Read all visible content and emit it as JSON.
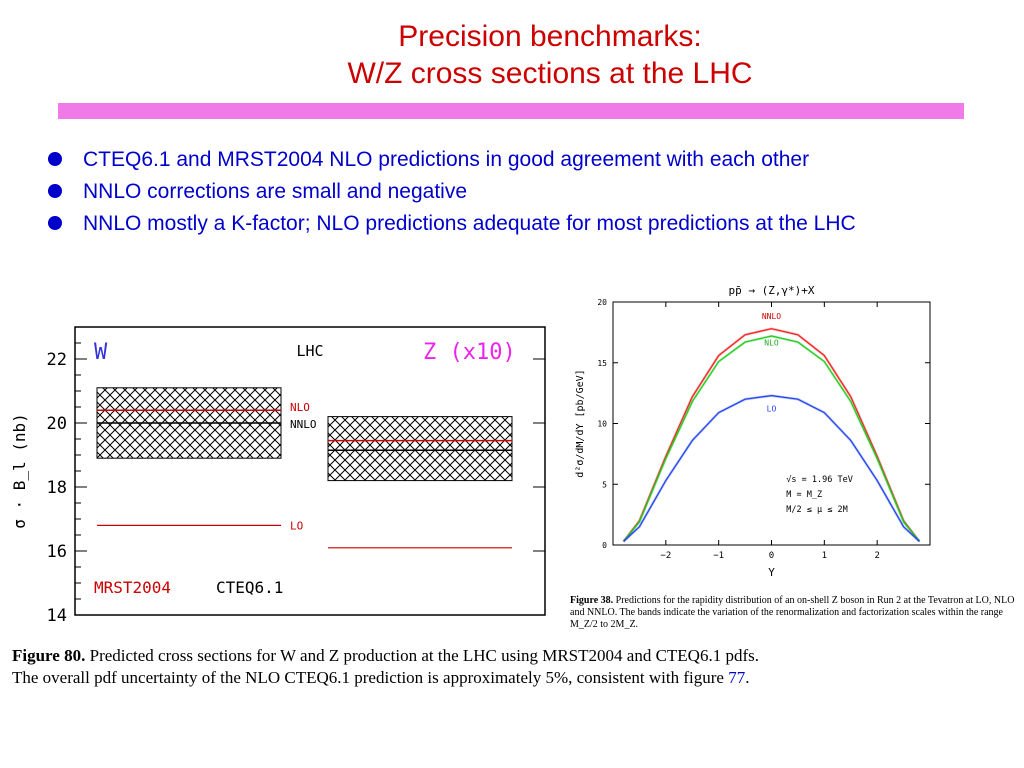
{
  "slide": {
    "title_line1": "Precision benchmarks:",
    "title_line2": "W/Z cross sections at the LHC",
    "bullets": [
      {
        "text": "CTEQ6.1 and MRST2004 NLO predictions in good agreement with each other"
      },
      {
        "text": "NNLO corrections are small and negative"
      },
      {
        "text": "NNLO mostly a K-factor; NLO predictions adequate for most predictions at the LHC"
      }
    ],
    "colors": {
      "title": "#cc0000",
      "bullets": "#0000cc",
      "rule": "#f07ae8"
    }
  },
  "figure80": {
    "caption_label": "Figure 80.",
    "caption_text": "Predicted cross sections for W and Z production at the LHC using MRST2004 and CTEQ6.1 pdfs. The overall pdf uncertainty of the NLO CTEQ6.1 prediction is approximately 5%, consistent with figure",
    "caption_ref": "77",
    "caption_end": "."
  },
  "figure38": {
    "caption_label": "Figure 38.",
    "caption_text": "Predictions for the rapidity distribution of an on-shell Z boson in Run 2 at the Tevatron at LO, NLO and NNLO. The bands indicate the variation of the renormalization and factorization scales within the range M_Z/2 to 2M_Z."
  },
  "chart_data": [
    {
      "type": "bar",
      "ylabel": "σ · B_l (nb)",
      "ylim": [
        14,
        23
      ],
      "yticks": [
        14,
        16,
        18,
        20,
        22
      ],
      "header_left": "W",
      "header_center": "LHC",
      "header_right": "Z (x10)",
      "footer_left": "MRST2004",
      "footer_right": "CTEQ6.1",
      "colors": {
        "W": "#3333dd",
        "Z": "#ee22ee",
        "nlo": "#cc0000",
        "lo": "#cc0000",
        "band": "#000000"
      },
      "groups": [
        {
          "name": "W",
          "band": [
            18.9,
            21.1
          ],
          "NLO": 20.4,
          "NNLO": 20.0,
          "LO": 16.8
        },
        {
          "name": "Z (x10)",
          "band": [
            18.2,
            20.2
          ],
          "NLO": 19.45,
          "NNLO": 19.15,
          "LO": 16.1
        }
      ],
      "line_labels": [
        "NLO",
        "NNLO",
        "LO"
      ]
    },
    {
      "type": "line",
      "title": "pp̄ → (Z,γ*)+X",
      "xlabel": "Y",
      "ylabel": "d²σ/dM/dY [pb/GeV]",
      "xlim": [
        -3,
        3
      ],
      "ylim": [
        0,
        20
      ],
      "xticks": [
        -2,
        -1,
        0,
        1,
        2
      ],
      "yticks": [
        0,
        5,
        10,
        15,
        20
      ],
      "annotations": [
        "√s = 1.96 TeV",
        "M = M_Z",
        "M/2 ≤ μ ≤ 2M"
      ],
      "series": [
        {
          "name": "NNLO",
          "color": "#ee2222",
          "x": [
            -2.8,
            -2.5,
            -2.0,
            -1.5,
            -1.0,
            -0.5,
            0.0,
            0.5,
            1.0,
            1.5,
            2.0,
            2.5,
            2.8
          ],
          "y": [
            0.3,
            2.0,
            7.3,
            12.2,
            15.6,
            17.3,
            17.8,
            17.3,
            15.6,
            12.2,
            7.3,
            2.0,
            0.3
          ]
        },
        {
          "name": "NLO",
          "color": "#22cc22",
          "x": [
            -2.8,
            -2.5,
            -2.0,
            -1.5,
            -1.0,
            -0.5,
            0.0,
            0.5,
            1.0,
            1.5,
            2.0,
            2.5,
            2.8
          ],
          "y": [
            0.3,
            1.9,
            7.1,
            11.8,
            15.1,
            16.7,
            17.2,
            16.7,
            15.1,
            11.8,
            7.1,
            1.9,
            0.3
          ]
        },
        {
          "name": "LO",
          "color": "#2244ee",
          "x": [
            -2.8,
            -2.5,
            -2.0,
            -1.5,
            -1.0,
            -0.5,
            0.0,
            0.5,
            1.0,
            1.5,
            2.0,
            2.5,
            2.8
          ],
          "y": [
            0.3,
            1.5,
            5.3,
            8.6,
            10.9,
            12.0,
            12.3,
            12.0,
            10.9,
            8.6,
            5.3,
            1.5,
            0.3
          ]
        }
      ]
    }
  ]
}
